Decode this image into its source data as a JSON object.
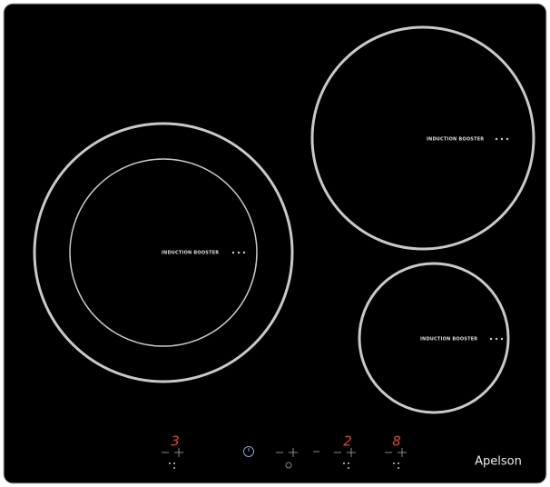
{
  "zones": [
    {
      "label": "INDUCTION BOOSTER"
    },
    {
      "label": "INDUCTION BOOSTER"
    },
    {
      "label": "INDUCTION BOOSTER"
    }
  ],
  "displays": [
    "3",
    "2",
    "8"
  ],
  "brand": "Apelson"
}
